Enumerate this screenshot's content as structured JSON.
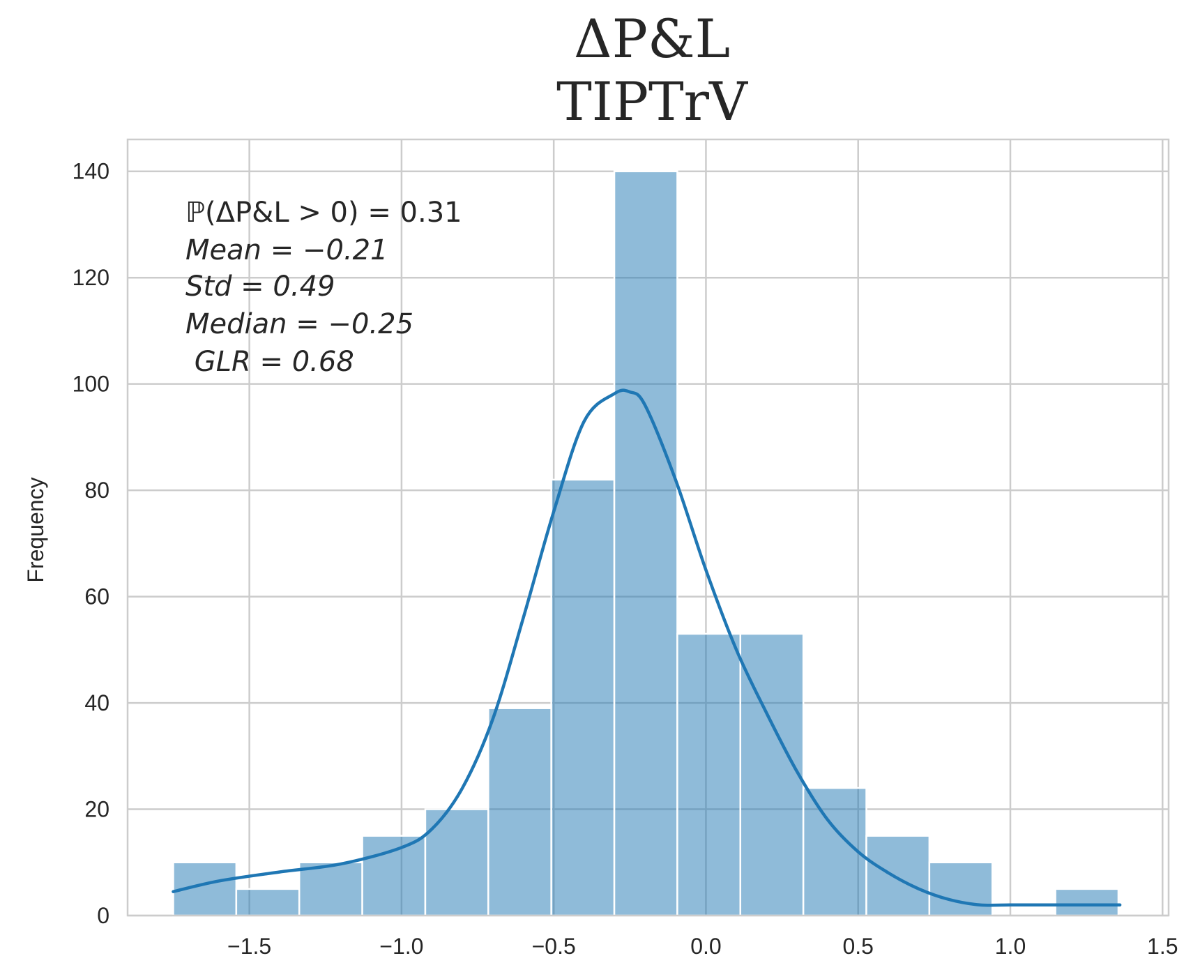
{
  "chart_data": {
    "type": "bar",
    "title_line1": "ΔP&L",
    "title_line2": "TIPTrV",
    "xlabel": "",
    "ylabel": "Frequency",
    "xlim": [
      -1.9,
      1.52
    ],
    "ylim": [
      0,
      146
    ],
    "x_ticks": [
      -1.5,
      -1.0,
      -0.5,
      0.0,
      0.5,
      1.0,
      1.5
    ],
    "x_tick_labels": [
      "−1.5",
      "−1.0",
      "−0.5",
      "0.0",
      "0.5",
      "1.0",
      "1.5"
    ],
    "y_ticks": [
      0,
      20,
      40,
      60,
      80,
      100,
      120,
      140
    ],
    "y_tick_labels": [
      "0",
      "20",
      "40",
      "60",
      "80",
      "100",
      "120",
      "140"
    ],
    "grid": true,
    "bins": [
      {
        "x0": -1.75,
        "x1": -1.543,
        "count": 10
      },
      {
        "x0": -1.543,
        "x1": -1.336,
        "count": 5
      },
      {
        "x0": -1.336,
        "x1": -1.129,
        "count": 10
      },
      {
        "x0": -1.129,
        "x1": -0.922,
        "count": 15
      },
      {
        "x0": -0.922,
        "x1": -0.715,
        "count": 20
      },
      {
        "x0": -0.715,
        "x1": -0.508,
        "count": 39
      },
      {
        "x0": -0.508,
        "x1": -0.301,
        "count": 82
      },
      {
        "x0": -0.301,
        "x1": -0.094,
        "count": 140
      },
      {
        "x0": -0.094,
        "x1": 0.113,
        "count": 53
      },
      {
        "x0": 0.113,
        "x1": 0.32,
        "count": 53
      },
      {
        "x0": 0.32,
        "x1": 0.527,
        "count": 24
      },
      {
        "x0": 0.527,
        "x1": 0.734,
        "count": 15
      },
      {
        "x0": 0.734,
        "x1": 0.941,
        "count": 10
      },
      {
        "x0": 0.941,
        "x1": 1.148,
        "count": 0
      },
      {
        "x0": 1.148,
        "x1": 1.355,
        "count": 5
      }
    ],
    "kde": {
      "x": [
        -1.75,
        -1.6,
        -1.4,
        -1.2,
        -1.0,
        -0.9,
        -0.8,
        -0.7,
        -0.6,
        -0.5,
        -0.4,
        -0.3,
        -0.25,
        -0.2,
        -0.1,
        0.0,
        0.1,
        0.2,
        0.3,
        0.4,
        0.5,
        0.6,
        0.7,
        0.8,
        0.9,
        1.0,
        1.1,
        1.2,
        1.36
      ],
      "y": [
        4.5,
        6.5,
        8.2,
        9.7,
        12.8,
        16.3,
        24,
        37,
        56,
        76,
        93,
        98.2,
        98.5,
        96,
        82,
        65,
        50,
        38,
        27,
        18,
        12,
        8,
        5,
        3,
        2,
        2,
        2,
        2,
        2
      ]
    },
    "color": "#1f77b4",
    "stats": [
      "ℙ(ΔP&L > 0) = 0.31",
      "Mean = −0.21",
      "Std = 0.49",
      "Median = −0.25",
      " GLR = 0.68"
    ]
  }
}
